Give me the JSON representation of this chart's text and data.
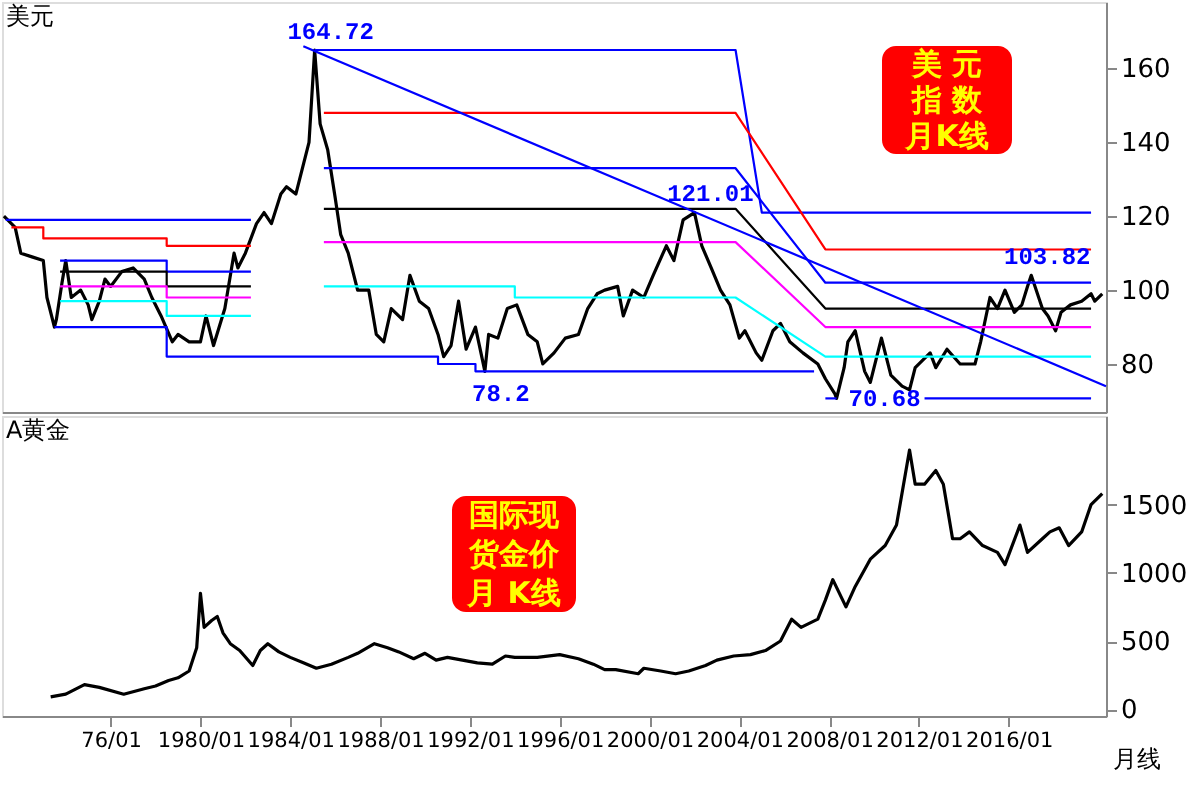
{
  "chart_data": [
    {
      "type": "line",
      "title": "美元",
      "xlim": [
        "1971-03",
        "2020-05"
      ],
      "ylim": [
        67,
        178
      ],
      "yticks": [
        80,
        100,
        120,
        140,
        160
      ],
      "tick_labels": "y",
      "grid": false,
      "annotations": [
        "美 元",
        "指 数",
        "月K线",
        {
          "text": "164.72",
          "x": "1985-02",
          "y": 164.72
        },
        {
          "text": "121.01",
          "x": "2002-01",
          "y": 121.01
        },
        {
          "text": "78.2",
          "x": "1992-09",
          "y": 78.2
        },
        {
          "text": "70.68",
          "x": "2008-05",
          "y": 70.68
        },
        {
          "text": "103.82",
          "x": "2017-01",
          "y": 103.82
        }
      ],
      "series": [
        {
          "color": "#000000",
          "x": [
            "1971-04",
            "1971-10",
            "1972-01",
            "1972-07",
            "1973-01",
            "1973-03",
            "1973-07",
            "1973-08",
            "1973-11",
            "1974-01",
            "1974-04",
            "1974-09",
            "1975-01",
            "1975-03",
            "1975-07",
            "1975-10",
            "1976-01",
            "1976-07",
            "1977-01",
            "1977-07",
            "1977-11",
            "1978-04",
            "1978-10",
            "1979-01",
            "1979-07",
            "1980-01",
            "1980-04",
            "1980-08",
            "1980-11",
            "1981-02",
            "1981-07",
            "1981-09",
            "1982-01",
            "1982-07",
            "1982-11",
            "1983-03",
            "1983-08",
            "1983-11",
            "1984-04",
            "1984-08",
            "1984-11",
            "1985-02",
            "1985-05",
            "1985-09",
            "1986-01",
            "1986-04",
            "1986-08",
            "1987-01",
            "1987-07",
            "1987-11",
            "1988-03",
            "1988-07",
            "1989-01",
            "1989-05",
            "1989-10",
            "1990-03",
            "1990-08",
            "1990-11",
            "1991-03",
            "1991-07",
            "1991-11",
            "1992-04",
            "1992-09",
            "1992-11",
            "1993-04",
            "1993-09",
            "1994-02",
            "1994-08",
            "1995-01",
            "1995-04",
            "1995-10",
            "1996-04",
            "1996-11",
            "1997-04",
            "1997-09",
            "1998-01",
            "1998-08",
            "1998-11",
            "1999-04",
            "1999-10",
            "2000-03",
            "2000-10",
            "2001-02",
            "2001-07",
            "2002-01",
            "2002-05",
            "2002-10",
            "2003-03",
            "2003-08",
            "2004-01",
            "2004-04",
            "2004-10",
            "2005-01",
            "2005-07",
            "2005-11",
            "2006-04",
            "2006-11",
            "2007-07",
            "2007-11",
            "2008-04",
            "2008-05",
            "2008-09",
            "2008-11",
            "2009-03",
            "2009-08",
            "2009-11",
            "2010-05",
            "2010-10",
            "2011-04",
            "2011-08",
            "2011-11",
            "2012-07",
            "2012-10",
            "2013-04",
            "2013-11",
            "2014-07",
            "2014-10",
            "2015-03",
            "2015-07",
            "2015-11",
            "2016-04",
            "2016-08",
            "2016-11",
            "2017-01",
            "2017-07",
            "2017-10",
            "2018-02",
            "2018-05",
            "2018-10",
            "2019-04",
            "2019-09",
            "2019-11",
            "2020-03"
          ],
          "values": [
            120,
            117,
            110,
            109,
            108,
            98,
            90,
            92,
            102,
            108,
            98,
            100,
            96,
            92,
            97,
            103,
            101,
            105,
            106,
            103,
            98,
            93,
            86,
            88,
            86,
            86,
            93,
            85,
            90,
            95,
            110,
            106,
            110,
            118,
            121,
            118,
            126,
            128,
            126,
            134,
            140,
            165,
            145,
            138,
            125,
            115,
            110,
            100,
            100,
            88,
            86,
            95,
            92,
            104,
            97,
            95,
            88,
            82,
            85,
            97,
            84,
            90,
            78,
            88,
            87,
            95,
            96,
            88,
            86,
            80,
            83,
            87,
            88,
            95,
            99,
            100,
            101,
            93,
            100,
            98,
            104,
            112,
            108,
            119,
            121,
            112,
            106,
            100,
            96,
            87,
            89,
            83,
            81,
            89,
            91,
            86,
            83,
            80,
            76,
            72,
            70.68,
            79,
            86,
            89,
            78,
            75,
            87,
            77,
            74,
            73,
            79,
            83,
            79,
            84,
            80,
            80,
            86,
            98,
            95,
            100,
            94,
            96,
            101,
            104,
            95,
            93,
            89,
            94,
            96,
            97,
            99,
            97,
            99
          ]
        },
        {
          "color": "#0000ff",
          "x": [
            "1971-05",
            "1982-04"
          ],
          "values": [
            119,
            119
          ]
        },
        {
          "color": "#ff0000",
          "x": [
            "1971-08",
            "1973-01",
            "1973-01",
            "1978-07",
            "1978-07",
            "1982-04"
          ],
          "values": [
            117,
            117,
            114,
            114,
            112,
            112
          ]
        },
        {
          "color": "#0000ff",
          "x": [
            "1973-10",
            "1978-07",
            "1978-07",
            "1982-04"
          ],
          "values": [
            108,
            108,
            105,
            105
          ]
        },
        {
          "color": "#000000",
          "x": [
            "1973-10",
            "1978-07",
            "1978-07",
            "1982-04"
          ],
          "values": [
            105,
            105,
            101,
            101
          ]
        },
        {
          "color": "#ff00ff",
          "x": [
            "1973-10",
            "1978-07",
            "1978-07",
            "1982-04"
          ],
          "values": [
            101,
            101,
            98,
            98
          ]
        },
        {
          "color": "#00ffff",
          "x": [
            "1973-10",
            "1978-07",
            "1978-07",
            "1982-04"
          ],
          "values": [
            97,
            97,
            93,
            93
          ]
        },
        {
          "color": "#0000ff",
          "x": [
            "1973-07",
            "1978-07",
            "1978-07",
            "1990-08",
            "1990-08",
            "1992-04",
            "1992-04",
            "2007-05"
          ],
          "values": [
            90,
            90,
            82,
            82,
            80,
            80,
            78,
            78
          ]
        },
        {
          "color": "#0000ff",
          "x": [
            "1985-02",
            "2003-11",
            "2005-01",
            "2019-09"
          ],
          "values": [
            165,
            165,
            121,
            121
          ]
        },
        {
          "color": "#ff0000",
          "x": [
            "1985-07",
            "2003-11",
            "2007-11",
            "2019-09"
          ],
          "values": [
            148,
            148,
            111,
            111
          ]
        },
        {
          "color": "#0000ff",
          "x": [
            "1985-07",
            "2003-11",
            "2007-11",
            "2019-09"
          ],
          "values": [
            133,
            133,
            102,
            102
          ]
        },
        {
          "color": "#000000",
          "x": [
            "1985-07",
            "2003-11",
            "2007-11",
            "2019-09"
          ],
          "values": [
            122,
            122,
            95,
            95
          ]
        },
        {
          "color": "#ff00ff",
          "x": [
            "1985-07",
            "2003-11",
            "2007-11",
            "2019-09"
          ],
          "values": [
            113,
            113,
            90,
            90
          ]
        },
        {
          "color": "#00ffff",
          "x": [
            "1985-07",
            "1994-01",
            "1994-01",
            "2003-11",
            "2007-11",
            "2019-09"
          ],
          "values": [
            101,
            101,
            98,
            98,
            82,
            82
          ]
        },
        {
          "color": "#0000ff",
          "x": [
            "2007-11",
            "2008-05",
            "2010-07",
            "2012-04",
            "2019-09"
          ],
          "values": [
            70.68,
            70.68,
            null,
            70.68,
            70.68
          ]
        },
        {
          "color": "#0000ff",
          "x": [
            "1984-08",
            "2020-05"
          ],
          "values": [
            166,
            74
          ]
        }
      ]
    },
    {
      "type": "line",
      "title": "A黄金",
      "xlabel": "月线",
      "xlim": [
        "1971-03",
        "2020-05"
      ],
      "ylim": [
        -50,
        2150
      ],
      "yticks": [
        0,
        500,
        1000,
        1500
      ],
      "xticks": [
        {
          "value": "1976-01",
          "label": "76/01"
        },
        {
          "value": "1980-01",
          "label": "1980/01"
        },
        {
          "value": "1984-01",
          "label": "1984/01"
        },
        {
          "value": "1988-01",
          "label": "1988/01"
        },
        {
          "value": "1992-01",
          "label": "1992/01"
        },
        {
          "value": "1996-01",
          "label": "1996/01"
        },
        {
          "value": "2000-01",
          "label": "2000/01"
        },
        {
          "value": "2004-01",
          "label": "2004/01"
        },
        {
          "value": "2008-01",
          "label": "2008/01"
        },
        {
          "value": "2012-01",
          "label": "2012/01"
        },
        {
          "value": "2016-01",
          "label": "2016/01"
        }
      ],
      "grid": false,
      "annotations": [
        "国际现",
        "货金价",
        "月 K线"
      ],
      "series": [
        {
          "color": "#000000",
          "x": [
            "1973-05",
            "1974-01",
            "1974-11",
            "1975-07",
            "1976-08",
            "1977-07",
            "1978-01",
            "1978-08",
            "1979-01",
            "1979-07",
            "1979-11",
            "1980-01",
            "1980-03",
            "1980-07",
            "1980-10",
            "1981-01",
            "1981-05",
            "1981-10",
            "1982-05",
            "1982-09",
            "1983-01",
            "1983-07",
            "1984-01",
            "1984-08",
            "1985-03",
            "1985-11",
            "1986-08",
            "1987-01",
            "1987-10",
            "1988-05",
            "1988-11",
            "1989-07",
            "1990-01",
            "1990-07",
            "1991-01",
            "1991-09",
            "1992-05",
            "1993-01",
            "1993-08",
            "1994-01",
            "1995-01",
            "1996-01",
            "1996-11",
            "1997-07",
            "1998-01",
            "1998-07",
            "1999-07",
            "1999-10",
            "2000-07",
            "2001-03",
            "2001-10",
            "2002-07",
            "2003-01",
            "2003-10",
            "2004-07",
            "2005-03",
            "2005-11",
            "2006-05",
            "2006-10",
            "2007-07",
            "2007-11",
            "2008-03",
            "2008-10",
            "2009-03",
            "2009-11",
            "2010-07",
            "2011-01",
            "2011-08",
            "2011-11",
            "2012-04",
            "2012-10",
            "2013-02",
            "2013-07",
            "2013-11",
            "2014-04",
            "2014-11",
            "2015-07",
            "2015-11",
            "2016-07",
            "2016-11",
            "2017-07",
            "2017-11",
            "2018-04",
            "2018-09",
            "2019-04",
            "2019-09",
            "2020-03"
          ],
          "values": [
            90,
            110,
            180,
            160,
            110,
            150,
            170,
            210,
            230,
            280,
            450,
            850,
            600,
            650,
            680,
            560,
            480,
            430,
            320,
            430,
            480,
            420,
            380,
            340,
            300,
            330,
            380,
            410,
            480,
            450,
            420,
            370,
            410,
            360,
            380,
            360,
            340,
            330,
            390,
            380,
            380,
            400,
            370,
            330,
            290,
            290,
            260,
            300,
            280,
            260,
            280,
            320,
            360,
            390,
            400,
            430,
            500,
            660,
            600,
            660,
            800,
            950,
            750,
            900,
            1100,
            1200,
            1350,
            1900,
            1650,
            1650,
            1750,
            1650,
            1250,
            1250,
            1300,
            1200,
            1150,
            1060,
            1350,
            1150,
            1250,
            1300,
            1330,
            1200,
            1300,
            1500,
            1580
          ]
        }
      ]
    }
  ]
}
